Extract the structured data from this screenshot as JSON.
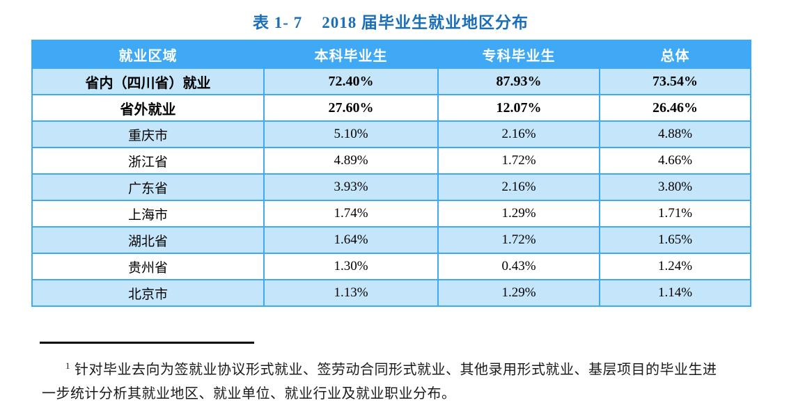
{
  "title": {
    "caption_number": "表 1- 7",
    "caption_text": "2018 届毕业生就业地区分布"
  },
  "table": {
    "headers": [
      "就业区域",
      "本科毕业生",
      "专科毕业生",
      "总体"
    ],
    "rows": [
      {
        "region": "省内（四川省）就业",
        "undergraduate": "72.40%",
        "college": "87.93%",
        "overall": "73.54%",
        "emphasis": true
      },
      {
        "region": "省外就业",
        "undergraduate": "27.60%",
        "college": "12.07%",
        "overall": "26.46%",
        "emphasis": true
      },
      {
        "region": "重庆市",
        "undergraduate": "5.10%",
        "college": "2.16%",
        "overall": "4.88%",
        "emphasis": false
      },
      {
        "region": "浙江省",
        "undergraduate": "4.89%",
        "college": "1.72%",
        "overall": "4.66%",
        "emphasis": false
      },
      {
        "region": "广东省",
        "undergraduate": "3.93%",
        "college": "2.16%",
        "overall": "3.80%",
        "emphasis": false
      },
      {
        "region": "上海市",
        "undergraduate": "1.74%",
        "college": "1.29%",
        "overall": "1.71%",
        "emphasis": false
      },
      {
        "region": "湖北省",
        "undergraduate": "1.64%",
        "college": "1.72%",
        "overall": "1.65%",
        "emphasis": false
      },
      {
        "region": "贵州省",
        "undergraduate": "1.30%",
        "college": "0.43%",
        "overall": "1.24%",
        "emphasis": false
      },
      {
        "region": "北京市",
        "undergraduate": "1.13%",
        "college": "1.29%",
        "overall": "1.14%",
        "emphasis": false
      }
    ]
  },
  "footnote": {
    "marker": "1",
    "line1": "针对毕业去向为签就业协议形式就业、签劳动合同形式就业、其他录用形式就业、基层项目的毕业生进",
    "line2": "一步统计分析其就业地区、就业单位、就业行业及就业职业分布。"
  },
  "colors": {
    "title_text": "#1b6eb8",
    "header_background": "#3fa9f5",
    "table_border": "#3fa9f5",
    "striped_row_background": "#c5e6fa",
    "footnote_rule": "#000000"
  }
}
